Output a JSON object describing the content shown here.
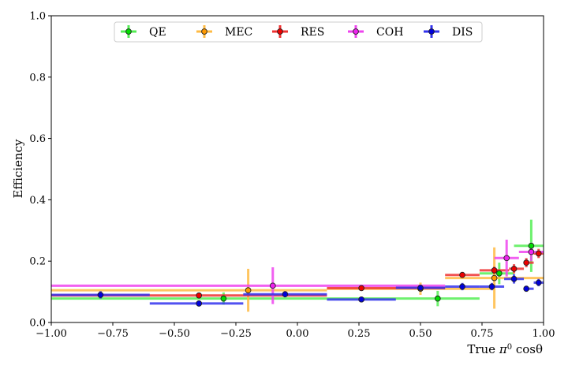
{
  "chart_data": {
    "type": "scatter",
    "title": "",
    "xlabel_main": "True ",
    "xlabel_symbol": "π",
    "xlabel_sup": "0",
    "xlabel_tail": " cosθ",
    "ylabel": "Efficiency",
    "xlim": [
      -1.0,
      1.0
    ],
    "ylim": [
      0.0,
      1.0
    ],
    "x_ticks": [
      "−1.00",
      "−0.75",
      "−0.50",
      "−0.25",
      "0.00",
      "0.25",
      "0.50",
      "0.75",
      "1.00"
    ],
    "x_tick_values": [
      -1.0,
      -0.75,
      -0.5,
      -0.25,
      0.0,
      0.25,
      0.5,
      0.75,
      1.0
    ],
    "y_ticks": [
      "0.0",
      "0.2",
      "0.4",
      "0.6",
      "0.8",
      "1.0"
    ],
    "y_tick_values": [
      0.0,
      0.2,
      0.4,
      0.6,
      0.8,
      1.0
    ],
    "grid": false,
    "legend_position": "top",
    "series": [
      {
        "name": "QE",
        "color": "#00dd00",
        "line_color": "#55ee55",
        "points": [
          {
            "x": -0.3,
            "xlo": -1.0,
            "xhi": 0.12,
            "y": 0.078,
            "yerr": 0.02
          },
          {
            "x": 0.57,
            "xlo": 0.12,
            "xhi": 0.74,
            "y": 0.078,
            "yerr": 0.025
          },
          {
            "x": 0.82,
            "xlo": 0.74,
            "xhi": 0.88,
            "y": 0.16,
            "yerr": 0.035
          },
          {
            "x": 0.95,
            "xlo": 0.88,
            "xhi": 1.0,
            "y": 0.25,
            "yerr": 0.085
          }
        ]
      },
      {
        "name": "MEC",
        "color": "#ff9900",
        "line_color": "#ffbb44",
        "points": [
          {
            "x": -0.2,
            "xlo": -1.0,
            "xhi": 0.12,
            "y": 0.105,
            "yerr": 0.07
          },
          {
            "x": 0.5,
            "xlo": 0.12,
            "xhi": 0.8,
            "y": 0.11,
            "yerr": 0.02
          },
          {
            "x": 0.8,
            "xlo": 0.6,
            "xhi": 1.0,
            "y": 0.145,
            "yerr": 0.1
          }
        ]
      },
      {
        "name": "RES",
        "color": "#ee0000",
        "line_color": "#ee3333",
        "points": [
          {
            "x": -0.4,
            "xlo": -1.0,
            "xhi": 0.12,
            "y": 0.088,
            "yerr": 0.008
          },
          {
            "x": 0.26,
            "xlo": 0.12,
            "xhi": 0.6,
            "y": 0.112,
            "yerr": 0.008
          },
          {
            "x": 0.67,
            "xlo": 0.6,
            "xhi": 0.74,
            "y": 0.155,
            "yerr": 0.01
          },
          {
            "x": 0.8,
            "xlo": 0.74,
            "xhi": 0.86,
            "y": 0.17,
            "yerr": 0.012
          },
          {
            "x": 0.88,
            "xlo": 0.86,
            "xhi": 0.92,
            "y": 0.175,
            "yerr": 0.015
          },
          {
            "x": 0.93,
            "xlo": 0.92,
            "xhi": 0.96,
            "y": 0.195,
            "yerr": 0.015
          },
          {
            "x": 0.98,
            "xlo": 0.96,
            "xhi": 1.0,
            "y": 0.225,
            "yerr": 0.015
          }
        ]
      },
      {
        "name": "COH",
        "color": "#ee22ee",
        "line_color": "#ee44ee",
        "points": [
          {
            "x": -0.1,
            "xlo": -1.0,
            "xhi": 0.6,
            "y": 0.12,
            "yerr": 0.06
          },
          {
            "x": 0.85,
            "xlo": 0.8,
            "xhi": 0.9,
            "y": 0.21,
            "yerr": 0.06
          },
          {
            "x": 0.95,
            "xlo": 0.9,
            "xhi": 1.0,
            "y": 0.23,
            "yerr": 0.03
          }
        ]
      },
      {
        "name": "DIS",
        "color": "#0000dd",
        "line_color": "#3333ee",
        "points": [
          {
            "x": -0.8,
            "xlo": -1.0,
            "xhi": -0.6,
            "y": 0.09,
            "yerr": 0.012
          },
          {
            "x": -0.4,
            "xlo": -0.6,
            "xhi": -0.22,
            "y": 0.062,
            "yerr": 0.01
          },
          {
            "x": -0.05,
            "xlo": -0.22,
            "xhi": 0.12,
            "y": 0.092,
            "yerr": 0.01
          },
          {
            "x": 0.26,
            "xlo": 0.12,
            "xhi": 0.4,
            "y": 0.075,
            "yerr": 0.007
          },
          {
            "x": 0.5,
            "xlo": 0.4,
            "xhi": 0.6,
            "y": 0.113,
            "yerr": 0.01
          },
          {
            "x": 0.67,
            "xlo": 0.6,
            "xhi": 0.74,
            "y": 0.117,
            "yerr": 0.012
          },
          {
            "x": 0.79,
            "xlo": 0.74,
            "xhi": 0.84,
            "y": 0.117,
            "yerr": 0.012
          },
          {
            "x": 0.88,
            "xlo": 0.84,
            "xhi": 0.92,
            "y": 0.142,
            "yerr": 0.015
          },
          {
            "x": 0.93,
            "xlo": 0.92,
            "xhi": 0.96,
            "y": 0.11,
            "yerr": 0.01
          },
          {
            "x": 0.98,
            "xlo": 0.96,
            "xhi": 1.0,
            "y": 0.13,
            "yerr": 0.012
          }
        ]
      }
    ]
  }
}
